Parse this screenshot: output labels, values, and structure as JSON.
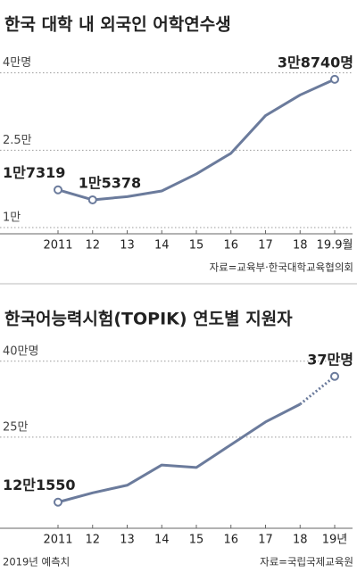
{
  "chart_data": [
    {
      "type": "line",
      "title": "한국 대학 내 외국인 어학연수생",
      "categories": [
        "2011",
        "12",
        "13",
        "14",
        "15",
        "16",
        "17",
        "18",
        "19.9월"
      ],
      "series": [
        {
          "name": "외국인 어학연수생",
          "color": "#6b7b9c",
          "values": [
            17319,
            15378,
            16000,
            17100,
            20400,
            24400,
            31700,
            35700,
            38740
          ],
          "value_labels": [
            "1만7319",
            "1만5378",
            null,
            null,
            null,
            null,
            null,
            null,
            "3만8740명"
          ]
        }
      ],
      "ylim": [
        8800,
        42000
      ],
      "yticks": [
        {
          "value": 10000,
          "label": "1만"
        },
        {
          "value": 25000,
          "label": "2.5만"
        },
        {
          "value": 40000,
          "label": "4만명"
        }
      ],
      "grid": true,
      "source": "자료=교육부·한국대학교육협의회"
    },
    {
      "type": "line",
      "title": "한국어능력시험(TOPIK) 연도별 지원자",
      "categories": [
        "2011",
        "12",
        "13",
        "14",
        "15",
        "16",
        "17",
        "18",
        "19년"
      ],
      "series": [
        {
          "name": "지원자",
          "color": "#6b7b9c",
          "values": [
            121550,
            140000,
            155000,
            195000,
            190000,
            235000,
            280000,
            315000,
            370000
          ],
          "value_labels": [
            "12만1550",
            null,
            null,
            null,
            null,
            null,
            null,
            null,
            "37만명"
          ]
        }
      ],
      "ylim": [
        70000,
        426000
      ],
      "yticks": [
        {
          "value": 250000,
          "label": "25만"
        },
        {
          "value": 400000,
          "label": "40만명"
        }
      ],
      "grid": true,
      "dashed_from_index": 7,
      "note": "2019년 예측치",
      "source": "자료=국립국제교육원"
    }
  ]
}
